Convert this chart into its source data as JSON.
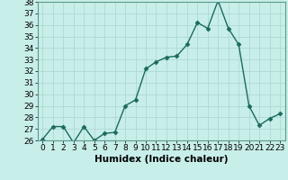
{
  "x": [
    0,
    1,
    2,
    3,
    4,
    5,
    6,
    7,
    8,
    9,
    10,
    11,
    12,
    13,
    14,
    15,
    16,
    17,
    18,
    19,
    20,
    21,
    22,
    23
  ],
  "y": [
    26.1,
    27.2,
    27.2,
    25.8,
    27.2,
    26.0,
    26.6,
    26.7,
    29.0,
    29.5,
    32.2,
    32.8,
    33.2,
    33.3,
    34.3,
    36.2,
    35.7,
    38.1,
    35.7,
    34.3,
    29.0,
    27.3,
    27.9,
    28.3
  ],
  "xlabel": "Humidex (Indice chaleur)",
  "ylim_min": 26,
  "ylim_max": 38,
  "xlim_min": -0.5,
  "xlim_max": 23.5,
  "yticks": [
    26,
    27,
    28,
    29,
    30,
    31,
    32,
    33,
    34,
    35,
    36,
    37,
    38
  ],
  "xticks": [
    0,
    1,
    2,
    3,
    4,
    5,
    6,
    7,
    8,
    9,
    10,
    11,
    12,
    13,
    14,
    15,
    16,
    17,
    18,
    19,
    20,
    21,
    22,
    23
  ],
  "line_color": "#1a6b5a",
  "marker": "D",
  "marker_size": 2.5,
  "bg_color": "#c8eeea",
  "grid_color": "#b0d8d2",
  "border_color": "#5a9a8a",
  "label_fontsize": 7.5,
  "tick_fontsize": 6.5,
  "line_width": 1.0
}
